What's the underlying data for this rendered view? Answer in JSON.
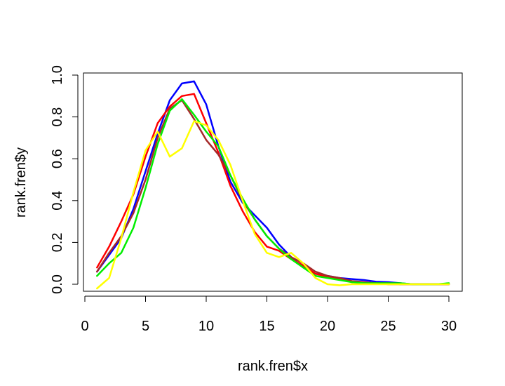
{
  "chart_data": {
    "type": "line",
    "title": "",
    "xlabel": "rank.fren$x",
    "ylabel": "rank.fren$y",
    "xlim": [
      0,
      31
    ],
    "ylim": [
      -0.03,
      1.0
    ],
    "x_ticks": [
      0,
      5,
      10,
      15,
      20,
      25,
      30
    ],
    "x_tick_labels": [
      "0",
      "5",
      "10",
      "15",
      "20",
      "25",
      "30"
    ],
    "y_ticks": [
      0.0,
      0.2,
      0.4,
      0.6,
      0.8,
      1.0
    ],
    "y_tick_labels": [
      "0.0",
      "0.2",
      "0.4",
      "0.6",
      "0.8",
      "1.0"
    ],
    "grid": false,
    "legend": "none",
    "x": [
      1,
      2,
      3,
      4,
      5,
      6,
      7,
      8,
      9,
      10,
      11,
      12,
      13,
      14,
      15,
      16,
      17,
      18,
      19,
      20,
      21,
      22,
      23,
      24,
      25,
      26,
      27,
      28,
      29,
      30
    ],
    "series": [
      {
        "color": "#0000ff",
        "values": [
          0.06,
          0.14,
          0.22,
          0.36,
          0.54,
          0.72,
          0.88,
          0.96,
          0.97,
          0.86,
          0.66,
          0.49,
          0.39,
          0.33,
          0.27,
          0.19,
          0.13,
          0.08,
          0.05,
          0.04,
          0.03,
          0.025,
          0.02,
          0.012,
          0.01,
          0.005,
          0.0,
          0.0,
          0.0,
          0.0
        ]
      },
      {
        "color": "#ff0000",
        "values": [
          0.08,
          0.18,
          0.3,
          0.43,
          0.61,
          0.77,
          0.85,
          0.9,
          0.91,
          0.77,
          0.63,
          0.47,
          0.35,
          0.25,
          0.18,
          0.16,
          0.12,
          0.09,
          0.05,
          0.035,
          0.025,
          0.01,
          0.005,
          0.005,
          0.0,
          0.0,
          0.0,
          0.0,
          0.0,
          0.0
        ]
      },
      {
        "color": "#a52a2a",
        "values": [
          0.06,
          0.15,
          0.23,
          0.34,
          0.5,
          0.7,
          0.84,
          0.88,
          0.79,
          0.69,
          0.62,
          0.52,
          0.4,
          0.31,
          0.23,
          0.17,
          0.13,
          0.1,
          0.06,
          0.04,
          0.03,
          0.015,
          0.01,
          0.005,
          0.005,
          0.0,
          0.0,
          0.0,
          0.0,
          0.0
        ]
      },
      {
        "color": "#00ee00",
        "values": [
          0.04,
          0.1,
          0.15,
          0.27,
          0.46,
          0.67,
          0.83,
          0.885,
          0.81,
          0.73,
          0.66,
          0.52,
          0.41,
          0.31,
          0.23,
          0.17,
          0.12,
          0.08,
          0.04,
          0.03,
          0.02,
          0.01,
          0.005,
          0.005,
          0.005,
          0.005,
          0.0,
          0.0,
          0.0,
          0.005
        ]
      },
      {
        "color": "#ffff00",
        "values": [
          -0.02,
          0.03,
          0.22,
          0.44,
          0.64,
          0.73,
          0.61,
          0.65,
          0.78,
          0.76,
          0.69,
          0.57,
          0.4,
          0.24,
          0.15,
          0.13,
          0.15,
          0.1,
          0.03,
          0.0,
          -0.005,
          0.0,
          0.0,
          0.0,
          0.0,
          0.0,
          0.0,
          0.0,
          0.0,
          0.0
        ]
      }
    ]
  }
}
